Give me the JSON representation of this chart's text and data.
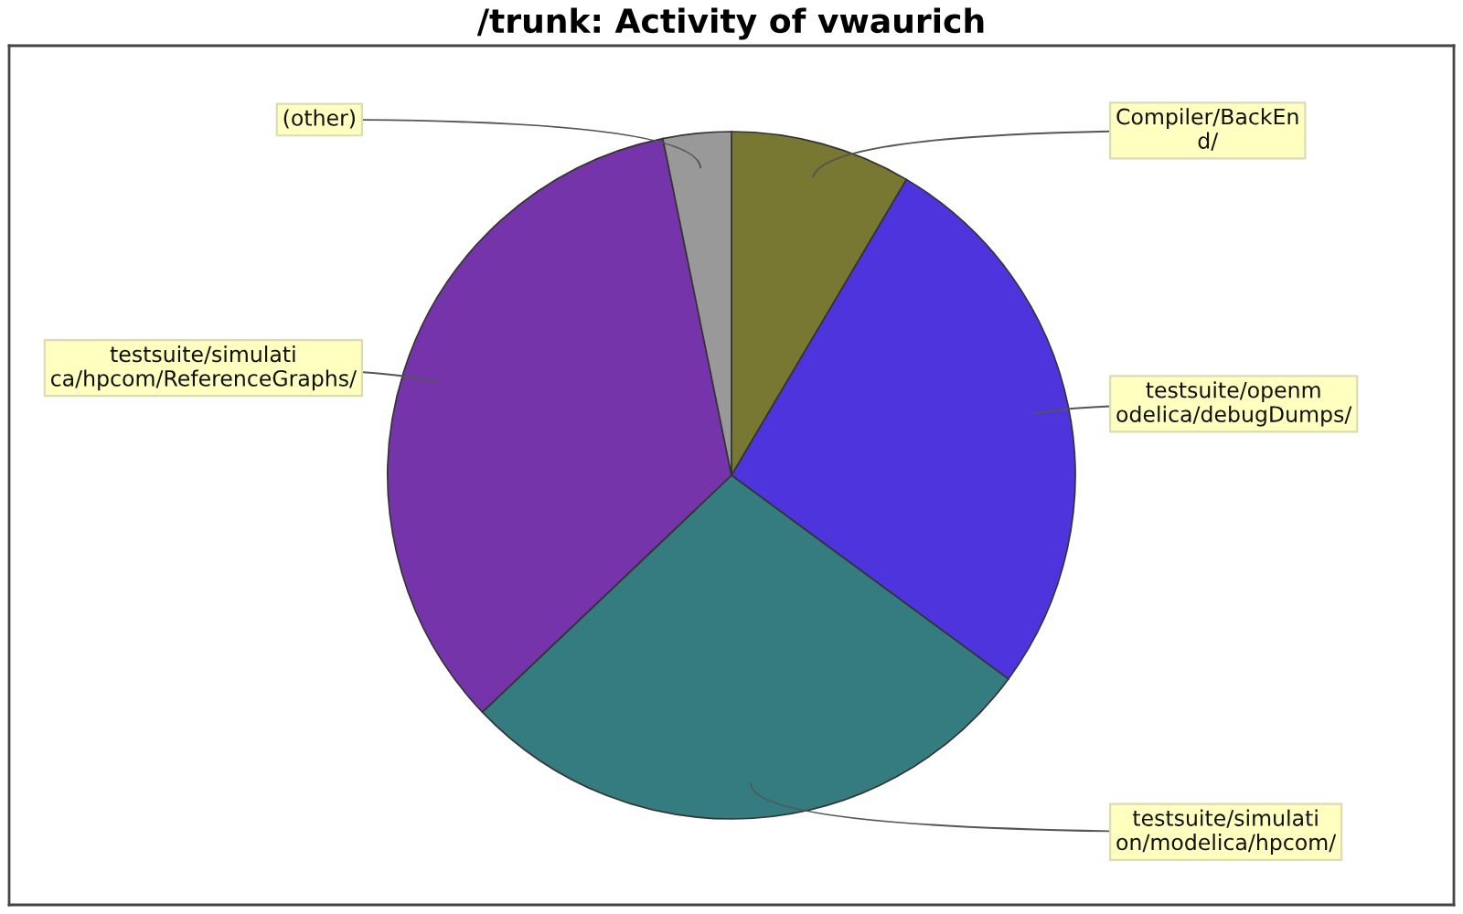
{
  "chart_data": {
    "type": "pie",
    "title": "/trunk: Activity of vwaurich",
    "categories": [
      "Compiler/BackEn\nd/",
      "testsuite/openm\nodelica/debugDumps/",
      "testsuite/simulati\non/modelica/hpcom/",
      "testsuite/simulati\nca/hpcom/ReferenceGraphs/",
      "(other)"
    ],
    "values": [
      8.5,
      26.6,
      27.8,
      33.9,
      3.2
    ],
    "colors": [
      "#787832",
      "#4e34dc",
      "#347c80",
      "#7634aa",
      "#999999"
    ]
  }
}
